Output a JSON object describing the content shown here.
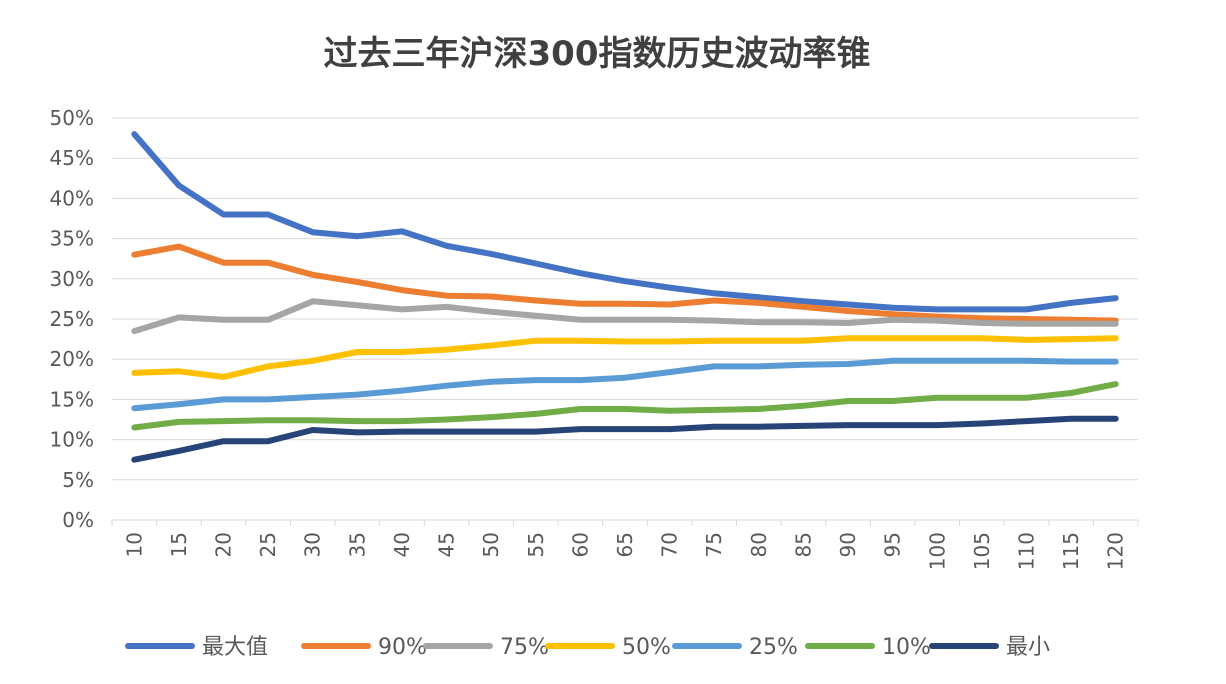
{
  "chart_data": {
    "type": "line",
    "title": "过去三年沪深300指数历史波动率锥",
    "xlabel": "",
    "ylabel": "",
    "ylim": [
      0,
      50
    ],
    "y_ticks": [
      "0%",
      "5%",
      "10%",
      "15%",
      "20%",
      "25%",
      "30%",
      "35%",
      "40%",
      "45%",
      "50%"
    ],
    "categories": [
      "10",
      "15",
      "20",
      "25",
      "30",
      "35",
      "40",
      "45",
      "50",
      "55",
      "60",
      "65",
      "70",
      "75",
      "80",
      "85",
      "90",
      "95",
      "100",
      "105",
      "110",
      "115",
      "120"
    ],
    "grid": true,
    "legend_position": "bottom",
    "series": [
      {
        "name": "最大值",
        "color": "#4472c4",
        "values": [
          48.0,
          41.6,
          38.0,
          38.0,
          35.8,
          35.3,
          35.9,
          34.1,
          33.1,
          31.9,
          30.7,
          29.7,
          28.9,
          28.2,
          27.7,
          27.2,
          26.8,
          26.4,
          26.2,
          26.2,
          26.2,
          27.0,
          27.6
        ]
      },
      {
        "name": "90%",
        "color": "#ed7d31",
        "values": [
          33.0,
          34.0,
          32.0,
          32.0,
          30.5,
          29.6,
          28.6,
          27.9,
          27.8,
          27.3,
          26.9,
          26.9,
          26.8,
          27.3,
          27.0,
          26.5,
          26.0,
          25.6,
          25.3,
          25.1,
          25.0,
          24.9,
          24.8
        ]
      },
      {
        "name": "75%",
        "color": "#a5a5a5",
        "values": [
          23.5,
          25.2,
          24.9,
          24.9,
          27.2,
          26.7,
          26.2,
          26.5,
          25.9,
          25.4,
          24.9,
          24.9,
          24.9,
          24.8,
          24.6,
          24.6,
          24.5,
          24.9,
          24.8,
          24.5,
          24.4,
          24.4,
          24.4
        ]
      },
      {
        "name": "50%",
        "color": "#ffc000",
        "values": [
          18.3,
          18.5,
          17.8,
          19.1,
          19.8,
          20.9,
          20.9,
          21.2,
          21.7,
          22.3,
          22.3,
          22.2,
          22.2,
          22.3,
          22.3,
          22.3,
          22.6,
          22.6,
          22.6,
          22.6,
          22.4,
          22.5,
          22.6
        ]
      },
      {
        "name": "25%",
        "color": "#5b9bd5",
        "values": [
          13.9,
          14.4,
          15.0,
          15.0,
          15.3,
          15.6,
          16.1,
          16.7,
          17.2,
          17.4,
          17.4,
          17.7,
          18.4,
          19.1,
          19.1,
          19.3,
          19.4,
          19.8,
          19.8,
          19.8,
          19.8,
          19.7,
          19.7
        ]
      },
      {
        "name": "10%",
        "color": "#70ad47",
        "values": [
          11.5,
          12.2,
          12.3,
          12.4,
          12.4,
          12.3,
          12.3,
          12.5,
          12.8,
          13.2,
          13.8,
          13.8,
          13.6,
          13.7,
          13.8,
          14.2,
          14.8,
          14.8,
          15.2,
          15.2,
          15.2,
          15.8,
          16.9
        ]
      },
      {
        "name": "最小",
        "color": "#264478",
        "values": [
          7.5,
          8.6,
          9.8,
          9.8,
          11.2,
          10.9,
          11.0,
          11.0,
          11.0,
          11.0,
          11.3,
          11.3,
          11.3,
          11.6,
          11.6,
          11.7,
          11.8,
          11.8,
          11.8,
          12.0,
          12.3,
          12.6,
          12.6
        ]
      }
    ]
  }
}
